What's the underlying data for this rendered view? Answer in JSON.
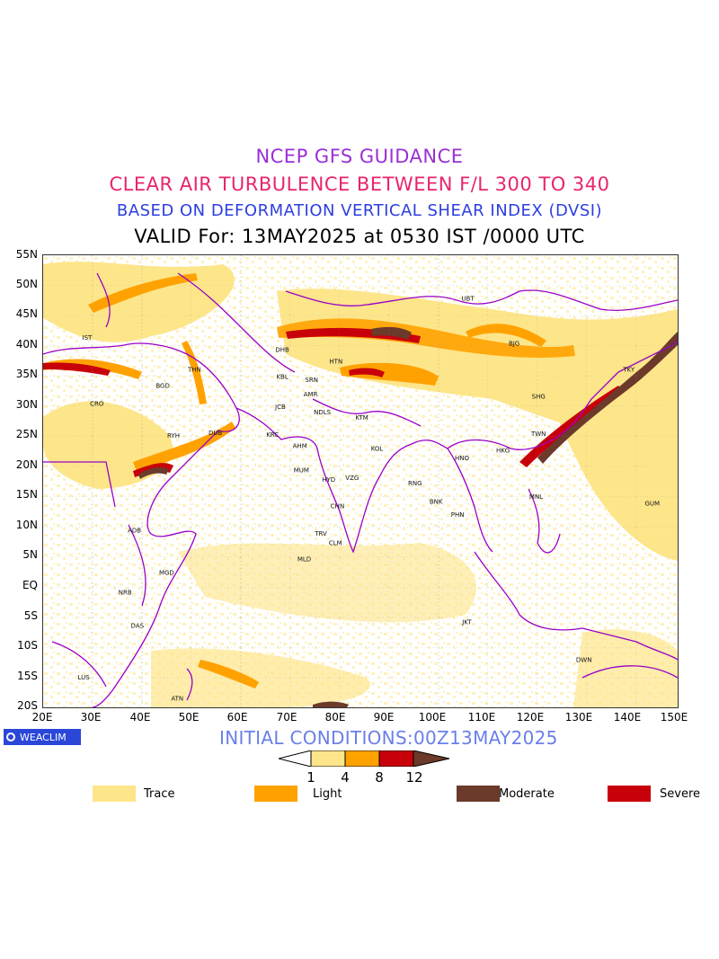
{
  "header": {
    "line1": "NCEP GFS GUIDANCE",
    "line2": "CLEAR AIR TURBULENCE BETWEEN F/L 300 TO 340",
    "line3": "BASED ON DEFORMATION VERTICAL SHEAR INDEX (DVSI)",
    "line4": "VALID For: 13MAY2025 at 0530 IST /0000 UTC"
  },
  "colors": {
    "line1": "#9b2fd6",
    "line2": "#e8246e",
    "line3": "#2c3ee0",
    "line4": "#000000",
    "initial": "#6a7fe8",
    "trace": "#fde58a",
    "light": "#ffa200",
    "moderate": "#6b3a2a",
    "severe": "#c8000a",
    "borders": "#9a00c8"
  },
  "axes": {
    "lat_labels": [
      "55N",
      "50N",
      "45N",
      "40N",
      "35N",
      "30N",
      "25N",
      "20N",
      "15N",
      "10N",
      "5N",
      "EQ",
      "5S",
      "10S",
      "15S",
      "20S"
    ],
    "lon_labels": [
      "20E",
      "30E",
      "40E",
      "50E",
      "60E",
      "70E",
      "80E",
      "90E",
      "100E",
      "110E",
      "120E",
      "130E",
      "140E",
      "150E"
    ]
  },
  "cities": [
    {
      "code": "UBT",
      "lon": 107,
      "lat": 47.5
    },
    {
      "code": "BJG",
      "lon": 116.5,
      "lat": 40
    },
    {
      "code": "IST",
      "lon": 29,
      "lat": 41
    },
    {
      "code": "DHB",
      "lon": 69,
      "lat": 39
    },
    {
      "code": "HTN",
      "lon": 80,
      "lat": 37
    },
    {
      "code": "KBL",
      "lon": 69,
      "lat": 34.5
    },
    {
      "code": "SRN",
      "lon": 75,
      "lat": 34
    },
    {
      "code": "THN",
      "lon": 51,
      "lat": 35.7
    },
    {
      "code": "BGD",
      "lon": 44.5,
      "lat": 33
    },
    {
      "code": "SHG",
      "lon": 121.5,
      "lat": 31.2
    },
    {
      "code": "TKY",
      "lon": 140,
      "lat": 35.7
    },
    {
      "code": "AMR",
      "lon": 74.8,
      "lat": 31.6
    },
    {
      "code": "CRO",
      "lon": 31,
      "lat": 30
    },
    {
      "code": "JCB",
      "lon": 68.6,
      "lat": 29.5
    },
    {
      "code": "NDLS",
      "lon": 77.2,
      "lat": 28.6
    },
    {
      "code": "KTM",
      "lon": 85.3,
      "lat": 27.7
    },
    {
      "code": "RYH",
      "lon": 46.7,
      "lat": 24.7
    },
    {
      "code": "DUB",
      "lon": 55.3,
      "lat": 25.2
    },
    {
      "code": "KRC",
      "lon": 67,
      "lat": 24.9
    },
    {
      "code": "TWN",
      "lon": 121.5,
      "lat": 25
    },
    {
      "code": "AHM",
      "lon": 72.6,
      "lat": 23
    },
    {
      "code": "KOL",
      "lon": 88.4,
      "lat": 22.6
    },
    {
      "code": "HKG",
      "lon": 114.2,
      "lat": 22.3
    },
    {
      "code": "HNO",
      "lon": 105.8,
      "lat": 21
    },
    {
      "code": "MUM",
      "lon": 72.9,
      "lat": 19
    },
    {
      "code": "HYD",
      "lon": 78.5,
      "lat": 17.4
    },
    {
      "code": "VZG",
      "lon": 83.3,
      "lat": 17.7
    },
    {
      "code": "RNG",
      "lon": 96.2,
      "lat": 16.8
    },
    {
      "code": "BNK",
      "lon": 100.5,
      "lat": 13.8
    },
    {
      "code": "MNL",
      "lon": 121,
      "lat": 14.6
    },
    {
      "code": "GUM",
      "lon": 144.8,
      "lat": 13.5
    },
    {
      "code": "CHN",
      "lon": 80.3,
      "lat": 13
    },
    {
      "code": "PHN",
      "lon": 104.9,
      "lat": 11.6
    },
    {
      "code": "ADB",
      "lon": 38.7,
      "lat": 9
    },
    {
      "code": "TRV",
      "lon": 76.9,
      "lat": 8.5
    },
    {
      "code": "CLM",
      "lon": 79.9,
      "lat": 6.9
    },
    {
      "code": "MGD",
      "lon": 45.3,
      "lat": 2
    },
    {
      "code": "MLD",
      "lon": 73.5,
      "lat": 4.2
    },
    {
      "code": "NRB",
      "lon": 36.8,
      "lat": -1.3
    },
    {
      "code": "JKT",
      "lon": 106.8,
      "lat": -6.2
    },
    {
      "code": "DAS",
      "lon": 39.3,
      "lat": -6.8
    },
    {
      "code": "DWN",
      "lon": 130.8,
      "lat": -12.5
    },
    {
      "code": "LUS",
      "lon": 28.3,
      "lat": -15.4
    },
    {
      "code": "ATN",
      "lon": 47.5,
      "lat": -18.9
    }
  ],
  "footer": {
    "logo_text": "WEACLIM",
    "initial_conditions": "INITIAL CONDITIONS:00Z13MAY2025"
  },
  "colorbar": {
    "ticks": [
      "1",
      "4",
      "8",
      "12"
    ]
  },
  "legend": [
    {
      "label": "Trace",
      "color": "#fde58a"
    },
    {
      "label": "Light",
      "color": "#ffa200"
    },
    {
      "label": "Moderate",
      "color": "#6b3a2a"
    },
    {
      "label": "Severe",
      "color": "#c8000a"
    }
  ]
}
